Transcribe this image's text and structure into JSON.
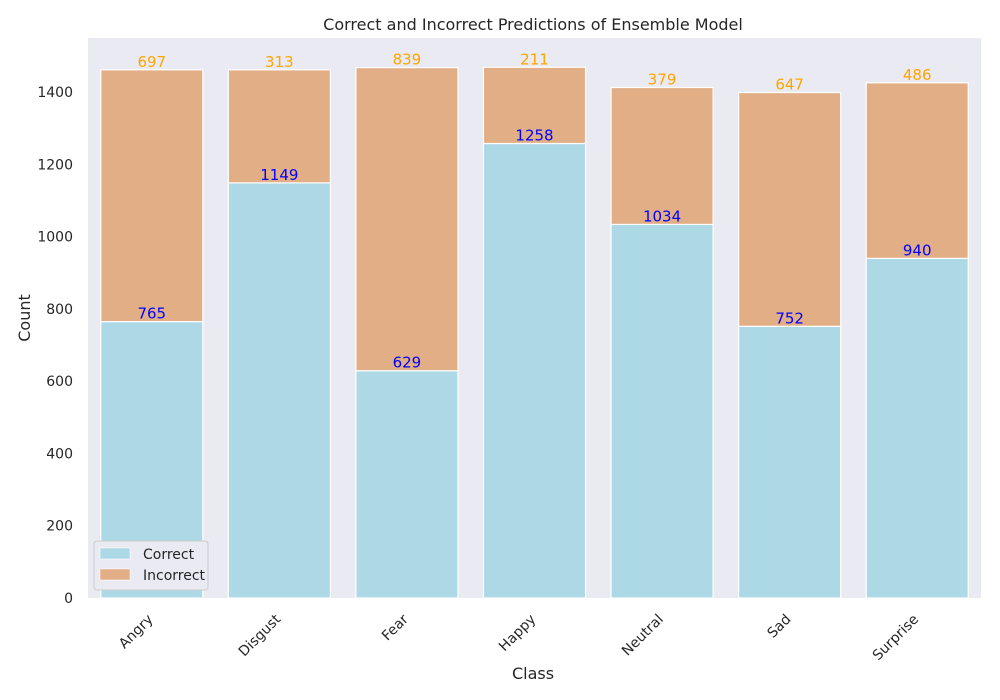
{
  "chart_data": {
    "type": "bar",
    "stacked": true,
    "title": "Correct and Incorrect Predictions of Ensemble Model",
    "xlabel": "Class",
    "ylabel": "Count",
    "categories": [
      "Angry",
      "Disgust",
      "Fear",
      "Happy",
      "Neutral",
      "Sad",
      "Surprise"
    ],
    "series": [
      {
        "name": "Correct",
        "values": [
          765,
          1149,
          629,
          1258,
          1034,
          752,
          940
        ],
        "color": "#add8e6",
        "label_color": "#0000ff"
      },
      {
        "name": "Incorrect",
        "values": [
          697,
          313,
          839,
          211,
          379,
          647,
          486
        ],
        "color": "#e1ae86",
        "label_color": "#ffa500"
      }
    ],
    "ylim": [
      0,
      1550
    ],
    "yticks": [
      0,
      200,
      400,
      600,
      800,
      1000,
      1200,
      1400
    ],
    "grid": false,
    "background": "#eaeaf2",
    "legend_position": "lower-left"
  }
}
